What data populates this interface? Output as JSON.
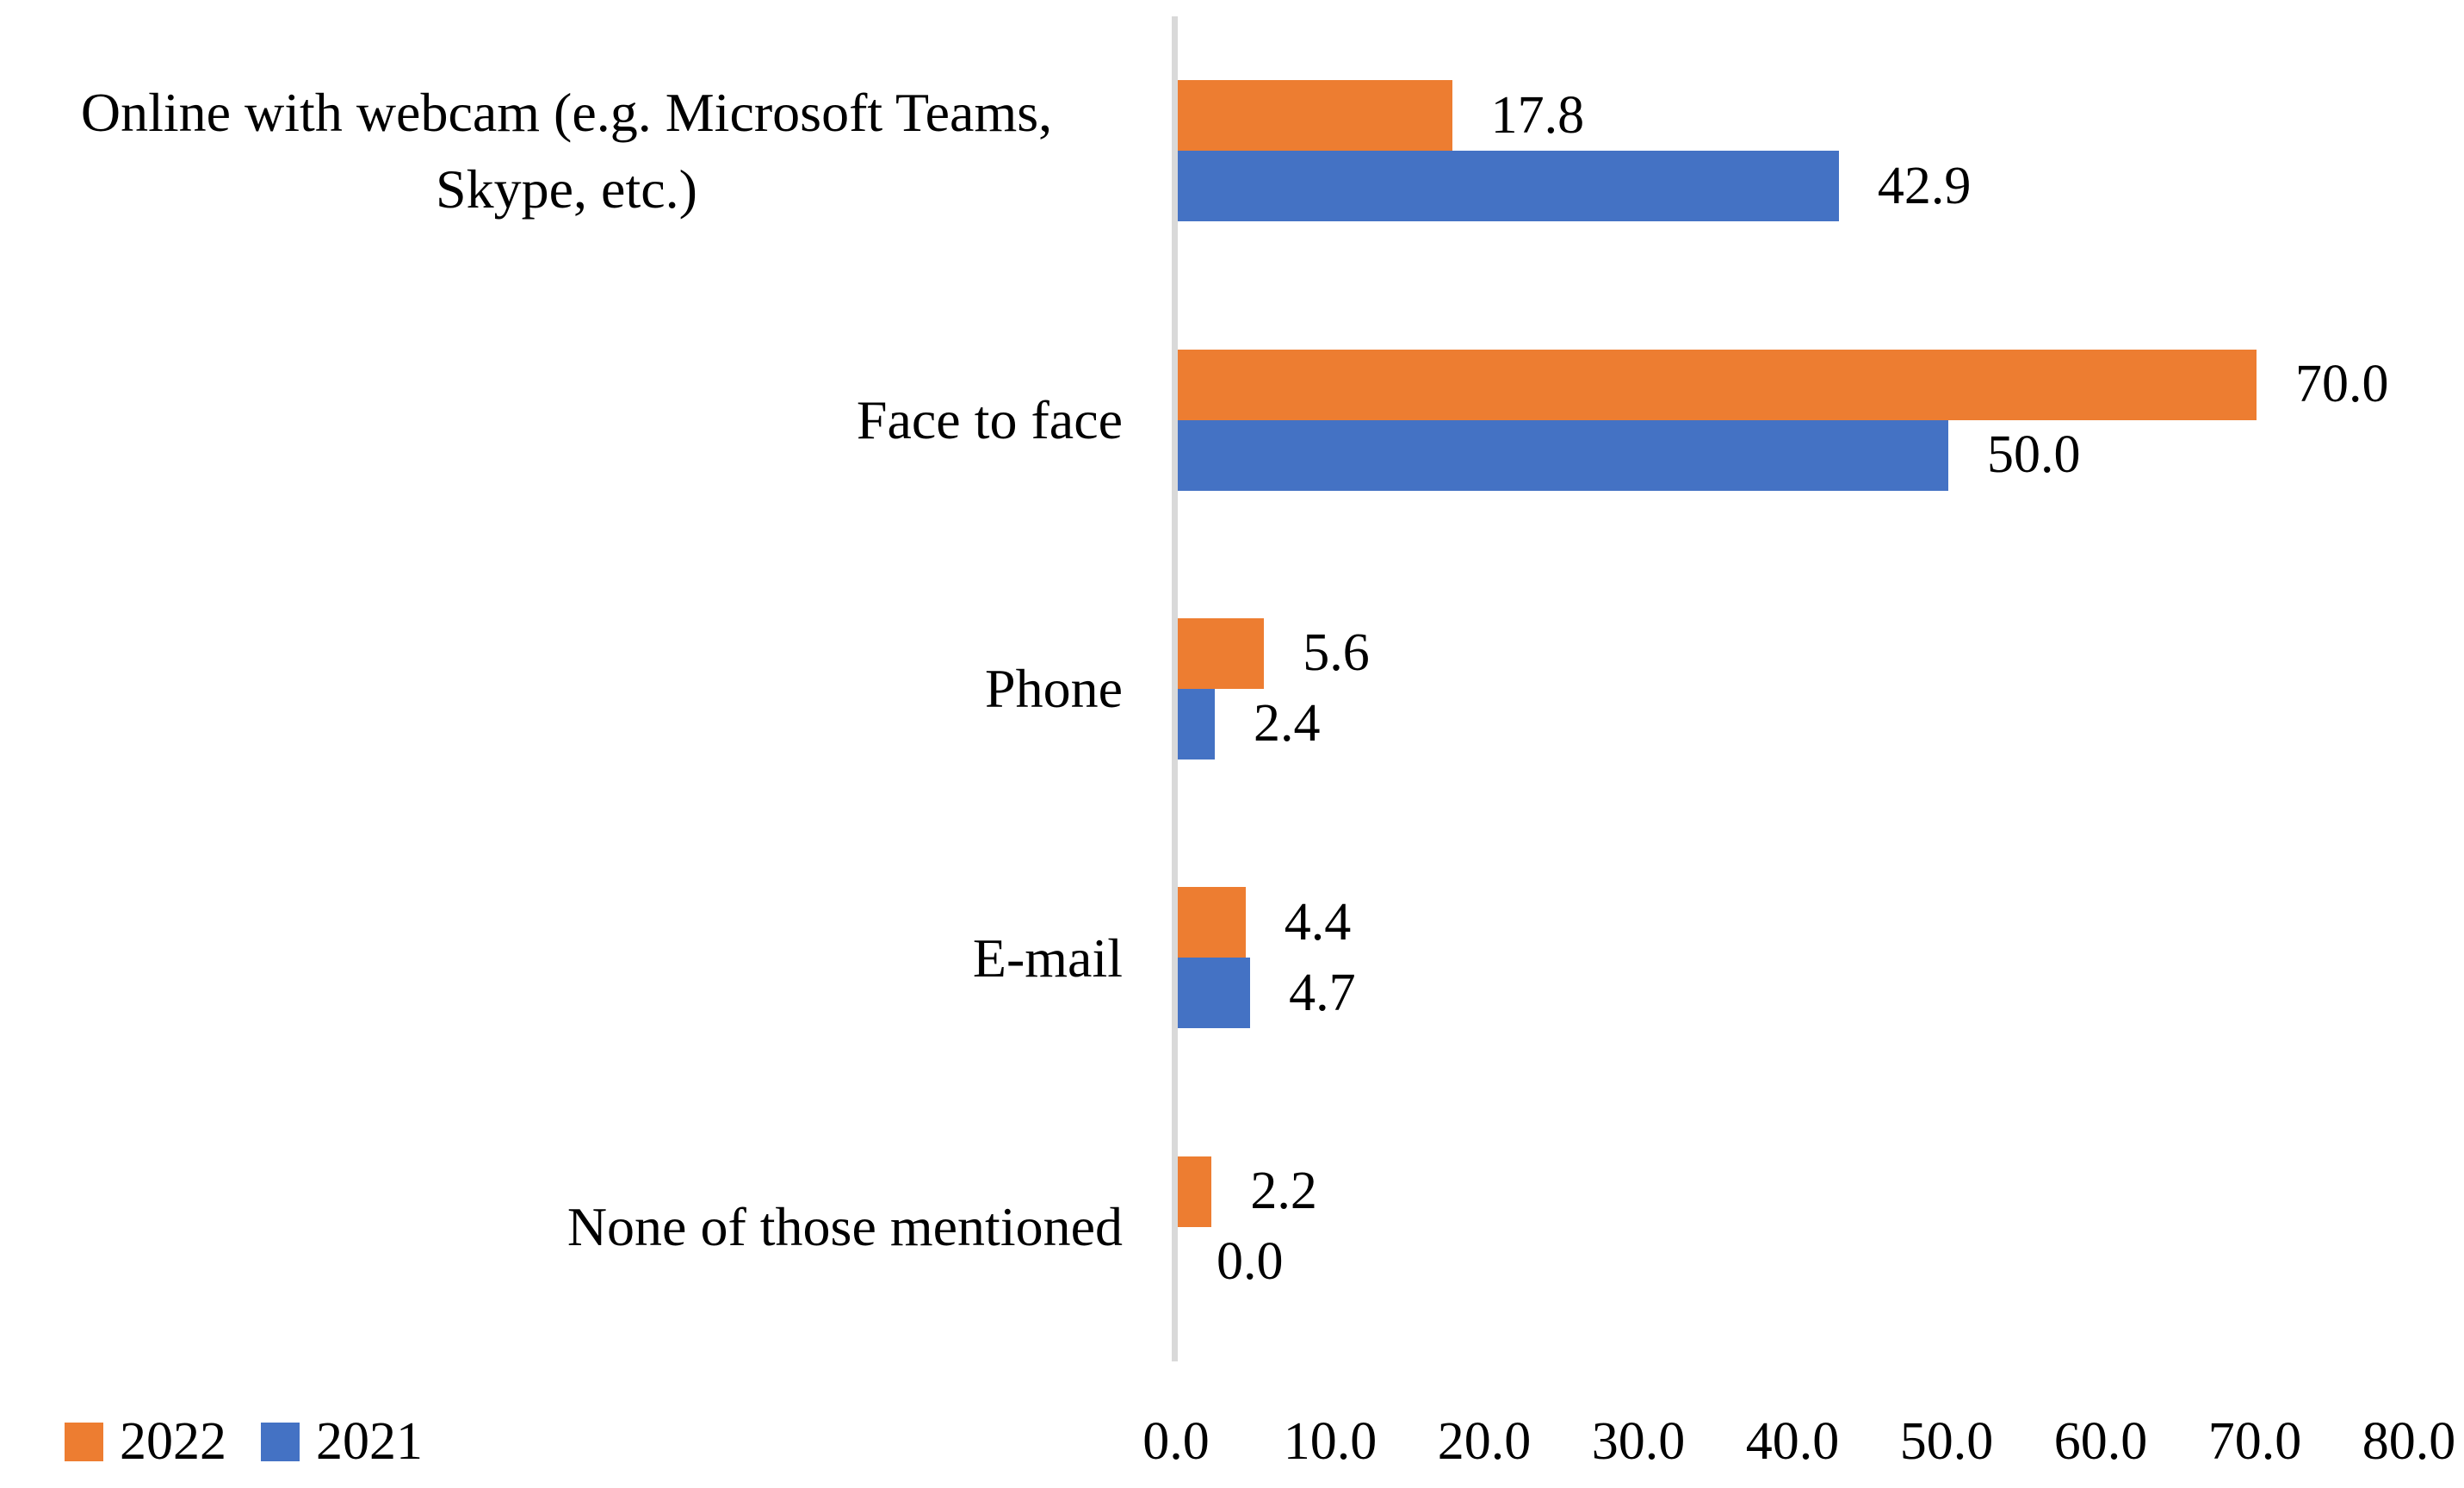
{
  "chart_data": {
    "type": "bar",
    "orientation": "horizontal",
    "title": "",
    "xlabel": "",
    "ylabel": "",
    "categories": [
      "Online with webcam (e.g. Microsoft Teams, Skype, etc.)",
      "Face to face",
      "Phone",
      "E-mail",
      "None of those mentioned"
    ],
    "series": [
      {
        "name": "2022",
        "color": "#ED7D31",
        "values": [
          17.8,
          70.0,
          5.6,
          4.4,
          2.2
        ],
        "labels": [
          "17.8",
          "70.0",
          "5.6",
          "4.4",
          "2.2"
        ]
      },
      {
        "name": "2021",
        "color": "#4472C4",
        "values": [
          42.9,
          50.0,
          2.4,
          4.7,
          0.0
        ],
        "labels": [
          "42.9",
          "50.0",
          "2.4",
          "4.7",
          "0.0"
        ]
      }
    ],
    "x_axis": {
      "min": 0,
      "max": 80,
      "tick_step": 10,
      "tick_labels": [
        "0.0",
        "10.0",
        "20.0",
        "30.0",
        "40.0",
        "50.0",
        "60.0",
        "70.0",
        "80.0"
      ]
    },
    "legend": {
      "position": "bottom-left",
      "items": [
        {
          "label": "2022",
          "color": "#ED7D31"
        },
        {
          "label": "2021",
          "color": "#4472C4"
        }
      ]
    },
    "grid": false,
    "data_labels_shown": true,
    "axis_line_color": "#D9D9D9",
    "text_color": "#000000",
    "background": "#FFFFFF"
  }
}
